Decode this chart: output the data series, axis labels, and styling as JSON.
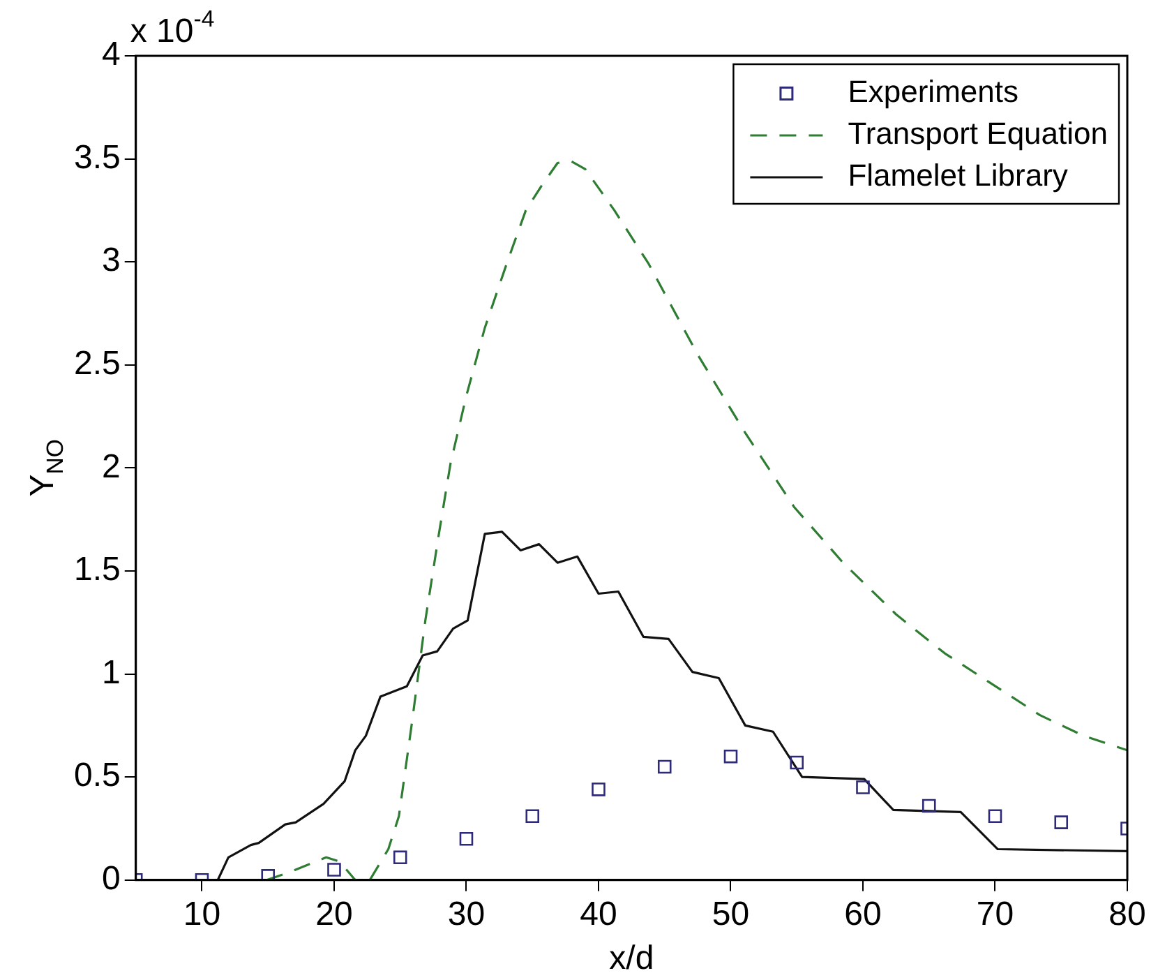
{
  "chart_data": {
    "type": "line",
    "xlabel": "x/d",
    "ylabel": "Y$_{NO}$",
    "annotations": [
      "x 10$^{-4}$"
    ],
    "xlim": [
      5,
      80
    ],
    "xticks": [
      10,
      20,
      30,
      40,
      50,
      60,
      70,
      80
    ],
    "ylim": [
      0,
      4
    ],
    "yticks": [
      0,
      0.5,
      1,
      1.5,
      2,
      2.5,
      3,
      3.5,
      4
    ],
    "grid": false,
    "legend": "top right",
    "series": [
      {
        "name": "Experiments",
        "type": "scatter",
        "marker": "square",
        "color": "#2e2a7a",
        "x": [
          5,
          10,
          15,
          20,
          25,
          30,
          35,
          40,
          45,
          50,
          55,
          60,
          65,
          70,
          75,
          80
        ],
        "values": [
          0,
          0,
          0.02,
          0.05,
          0.11,
          0.2,
          0.31,
          0.44,
          0.55,
          0.6,
          0.57,
          0.45,
          0.36,
          0.31,
          0.28,
          0.25
        ]
      },
      {
        "name": "Transport Equation",
        "type": "line",
        "line_style": "dashed",
        "color": "#2e7d32",
        "x": [
          14.9,
          16.7,
          19.4,
          20.4,
          21.6,
          22.7,
          24.1,
          24.9,
          25.9,
          26.9,
          27.9,
          28.8,
          30,
          31.4,
          33.1,
          34.5,
          35.7,
          36.9,
          37.9,
          39,
          41.2,
          43.8,
          47.5,
          51.1,
          54.8,
          58.5,
          62.5,
          66.2,
          69.8,
          73.4,
          76.7,
          80
        ],
        "values": [
          0,
          0.04,
          0.11,
          0.09,
          0,
          0,
          0.15,
          0.31,
          0.77,
          1.26,
          1.67,
          2.02,
          2.35,
          2.68,
          3.0,
          3.25,
          3.37,
          3.48,
          3.49,
          3.45,
          3.25,
          2.99,
          2.55,
          2.17,
          1.81,
          1.54,
          1.29,
          1.1,
          0.95,
          0.8,
          0.7,
          0.63
        ]
      },
      {
        "name": "Flamelet Library",
        "type": "line",
        "line_style": "solid",
        "color": "#111111",
        "x": [
          5,
          11.2,
          12,
          13.7,
          14.3,
          16.3,
          17.1,
          19.2,
          20.8,
          21.6,
          22.4,
          23.5,
          25.5,
          26.7,
          27.8,
          29,
          30.1,
          31.4,
          32.7,
          34.1,
          35.5,
          36.9,
          38.4,
          40,
          41.5,
          43.4,
          45.3,
          47.1,
          49.1,
          51.1,
          53.2,
          55.4,
          60.1,
          62.3,
          67.4,
          70.2,
          80
        ],
        "values": [
          0,
          0,
          0.11,
          0.17,
          0.18,
          0.27,
          0.28,
          0.37,
          0.48,
          0.63,
          0.7,
          0.89,
          0.94,
          1.09,
          1.11,
          1.22,
          1.26,
          1.68,
          1.69,
          1.6,
          1.63,
          1.54,
          1.57,
          1.39,
          1.4,
          1.18,
          1.17,
          1.01,
          0.98,
          0.75,
          0.72,
          0.5,
          0.49,
          0.34,
          0.33,
          0.15,
          0.14
        ]
      }
    ]
  }
}
